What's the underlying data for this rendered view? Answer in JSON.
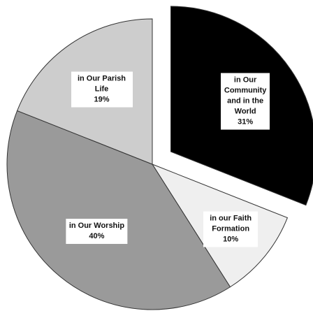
{
  "chart_data": {
    "type": "pie",
    "categories": [
      "in Our Community and in the World",
      "in our Faith Formation",
      "in Our Worship",
      "in Our Parish Life"
    ],
    "values": [
      31,
      10,
      40,
      19
    ],
    "value_labels": [
      "31%",
      "10%",
      "40%",
      "19%"
    ],
    "colors": [
      "#000000",
      "#efefef",
      "#9a9a9a",
      "#cdcdcd"
    ],
    "explode": [
      true,
      false,
      false,
      false
    ]
  }
}
